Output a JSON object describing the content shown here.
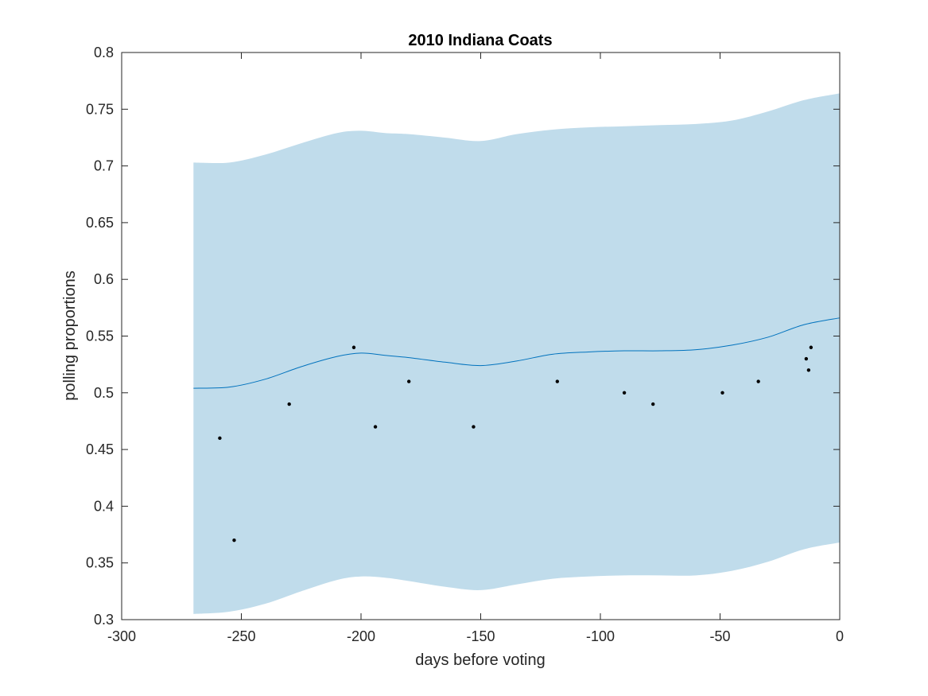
{
  "chart_data": {
    "type": "scatter",
    "title": "2010 Indiana Coats",
    "xlabel": "days before voting",
    "ylabel": "polling proportions",
    "xlim": [
      -300,
      0
    ],
    "ylim": [
      0.3,
      0.8
    ],
    "x_ticks": [
      -300,
      -250,
      -200,
      -150,
      -100,
      -50,
      0
    ],
    "y_ticks": [
      0.3,
      0.35,
      0.4,
      0.45,
      0.5,
      0.55,
      0.6,
      0.65,
      0.7,
      0.75,
      0.8
    ],
    "x_tick_labels": [
      "-300",
      "-250",
      "-200",
      "-150",
      "-100",
      "-50",
      "0"
    ],
    "y_tick_labels": [
      "0.3",
      "0.35",
      "0.4",
      "0.45",
      "0.5",
      "0.55",
      "0.6",
      "0.65",
      "0.7",
      "0.75",
      "0.8"
    ],
    "grid": false,
    "colors": {
      "band": "#c0dceb",
      "line": "#0072bd",
      "points": "#000000",
      "axes": "#262626"
    },
    "series": [
      {
        "kind": "points",
        "x": [
          -259,
          -253,
          -230,
          -203,
          -194,
          -180,
          -153,
          -118,
          -90,
          -78,
          -49,
          -34,
          -14,
          -13,
          -12
        ],
        "y": [
          0.46,
          0.37,
          0.49,
          0.54,
          0.47,
          0.51,
          0.47,
          0.51,
          0.5,
          0.49,
          0.5,
          0.51,
          0.53,
          0.52,
          0.54
        ]
      },
      {
        "kind": "line",
        "x": [
          -270,
          -255,
          -240,
          -225,
          -210,
          -200,
          -190,
          -180,
          -165,
          -150,
          -135,
          -120,
          -105,
          -90,
          -75,
          -60,
          -45,
          -30,
          -15,
          0
        ],
        "y": [
          0.504,
          0.505,
          0.512,
          0.523,
          0.532,
          0.535,
          0.533,
          0.531,
          0.527,
          0.524,
          0.528,
          0.534,
          0.536,
          0.537,
          0.537,
          0.538,
          0.542,
          0.549,
          0.56,
          0.566
        ]
      },
      {
        "kind": "band",
        "x": [
          -270,
          -255,
          -240,
          -225,
          -210,
          -200,
          -190,
          -180,
          -165,
          -150,
          -135,
          -120,
          -105,
          -90,
          -75,
          -60,
          -45,
          -30,
          -15,
          0
        ],
        "upper": [
          0.703,
          0.703,
          0.71,
          0.72,
          0.729,
          0.731,
          0.729,
          0.728,
          0.725,
          0.722,
          0.728,
          0.732,
          0.734,
          0.735,
          0.736,
          0.737,
          0.74,
          0.748,
          0.758,
          0.764
        ],
        "lower": [
          0.305,
          0.307,
          0.314,
          0.325,
          0.335,
          0.338,
          0.337,
          0.334,
          0.329,
          0.326,
          0.331,
          0.336,
          0.338,
          0.339,
          0.339,
          0.339,
          0.343,
          0.351,
          0.362,
          0.368
        ]
      }
    ]
  }
}
